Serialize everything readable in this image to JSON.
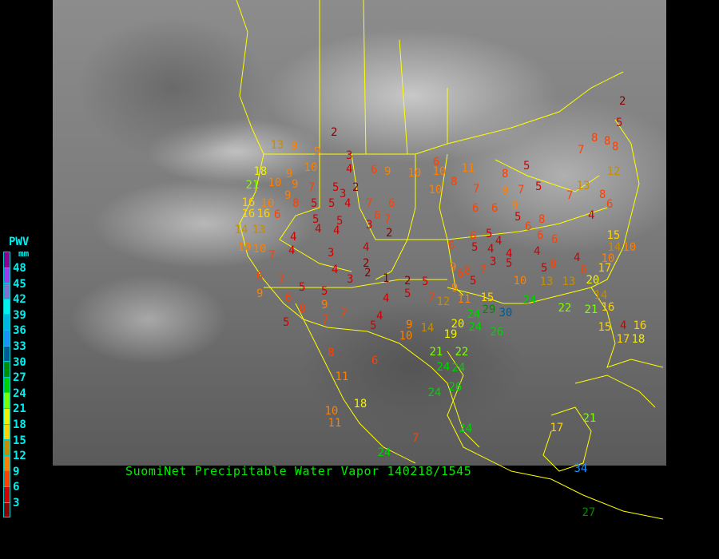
{
  "caption": "SuomiNet Precipitable Water Vapor 140218/1545",
  "legend": {
    "title": "PWV",
    "unit": "mm",
    "labels": [
      "48",
      "45",
      "42",
      "39",
      "36",
      "33",
      "30",
      "27",
      "24",
      "21",
      "18",
      "15",
      "12",
      "9",
      "6",
      "3"
    ],
    "colors": [
      "#900090",
      "#9a3cf0",
      "#8070d0",
      "#00f0f0",
      "#00b4e6",
      "#1e90ff",
      "#005a96",
      "#008c00",
      "#00d200",
      "#7cff00",
      "#f0f000",
      "#ffd200",
      "#c88c00",
      "#ff8000",
      "#ff4000",
      "#d00000",
      "#8b0000"
    ]
  },
  "border_color": "#ffff00",
  "stations": [
    2,
    3,
    9,
    9,
    13,
    18,
    9,
    10,
    4,
    6,
    9,
    10,
    6,
    10,
    8,
    11,
    10,
    7,
    8,
    5,
    5,
    9,
    7,
    7,
    13,
    7,
    8,
    8,
    2,
    5,
    8,
    12,
    8,
    4,
    6,
    21,
    10,
    9,
    7,
    5,
    2,
    9,
    8,
    5,
    5,
    4,
    7,
    6,
    3,
    16,
    10,
    16,
    16,
    6,
    5,
    5,
    3,
    6,
    7,
    2,
    14,
    13,
    10,
    10,
    7,
    4,
    4,
    4,
    4,
    3,
    4,
    2,
    4,
    3,
    2,
    1,
    2,
    5,
    4,
    5,
    6,
    7,
    5,
    5,
    9,
    6,
    8,
    9,
    7,
    7,
    5,
    4,
    5,
    9,
    10,
    14,
    19,
    20,
    7,
    12,
    11,
    9,
    6,
    5,
    7,
    15,
    24,
    29,
    30,
    24,
    26,
    24,
    10,
    13,
    13,
    20,
    17,
    22,
    21,
    16,
    14,
    15,
    4,
    16,
    17,
    18,
    6,
    6,
    5,
    5,
    4,
    4,
    4,
    3,
    5,
    9,
    8,
    6,
    6,
    9,
    5,
    6,
    8,
    6,
    6,
    4,
    8,
    5,
    4,
    6,
    10,
    15,
    14,
    10,
    21,
    22,
    24,
    24,
    24,
    26,
    8,
    6,
    11,
    18,
    10,
    11,
    7,
    24,
    24,
    17,
    21,
    34,
    27
  ]
}
